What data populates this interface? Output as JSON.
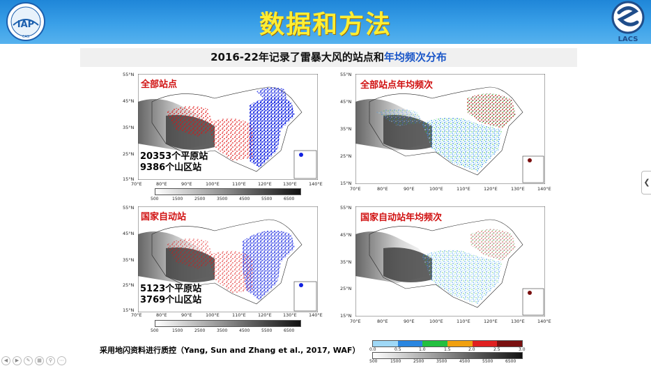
{
  "header": {
    "title": "数据和方法",
    "left_logo_text": "IAP",
    "left_logo_sub": "CAS",
    "right_logo_text": "LACS"
  },
  "subtitle": {
    "main": "2016-22年记录了雷暴大风的站点和",
    "highlight": "年均频次分布"
  },
  "colors": {
    "header_bg": "#2a92df",
    "title_color": "#ffee33",
    "highlight": "#1a56c8",
    "panel_title": "#d01010"
  },
  "panels": {
    "tl": {
      "title": "全部站点",
      "note_line1": "20353个平原站",
      "note_line2": "9386个山区站",
      "lats": [
        "55°N",
        "45°N",
        "35°N",
        "25°N",
        "15°N"
      ],
      "lons": [
        "70°E",
        "80°E",
        "90°E",
        "100°E",
        "110°E",
        "120°E",
        "130°E",
        "140°E"
      ]
    },
    "tr": {
      "title": "全部站点年均频次",
      "lats": [
        "55°N",
        "45°N",
        "35°N",
        "25°N",
        "15°N"
      ],
      "lons": [
        "70°E",
        "80°E",
        "90°E",
        "100°E",
        "110°E",
        "120°E",
        "130°E",
        "140°E"
      ]
    },
    "bl": {
      "title": "国家自动站",
      "note_line1": "5123个平原站",
      "note_line2": "3769个山区站",
      "lats": [
        "55°N",
        "45°N",
        "35°N",
        "25°N",
        "15°N"
      ],
      "lons": [
        "70°E",
        "80°E",
        "90°E",
        "100°E",
        "110°E",
        "120°E",
        "130°E",
        "140°E"
      ]
    },
    "br": {
      "title": "国家自动站年均频次",
      "lats": [
        "55°N",
        "45°N",
        "35°N",
        "25°N",
        "15°N"
      ],
      "lons": [
        "70°E",
        "80°E",
        "90°E",
        "100°E",
        "110°E",
        "120°E",
        "130°E",
        "140°E"
      ]
    }
  },
  "elevation_colorbar": {
    "labels": [
      "500",
      "1500",
      "2500",
      "3500",
      "4500",
      "5500",
      "6500"
    ]
  },
  "frequency_colorbar": {
    "labels": [
      "0.0",
      "0.5",
      "1.0",
      "1.5",
      "2.0",
      "2.5",
      "3.0"
    ],
    "colors": [
      "#9fd8f6",
      "#2a86e0",
      "#23c040",
      "#f0f020",
      "#f08a10",
      "#e02020",
      "#7a1010"
    ]
  },
  "footnote": "采用地闪资料进行质控（Yang, Sun and Zhang et al., 2017, WAF）"
}
